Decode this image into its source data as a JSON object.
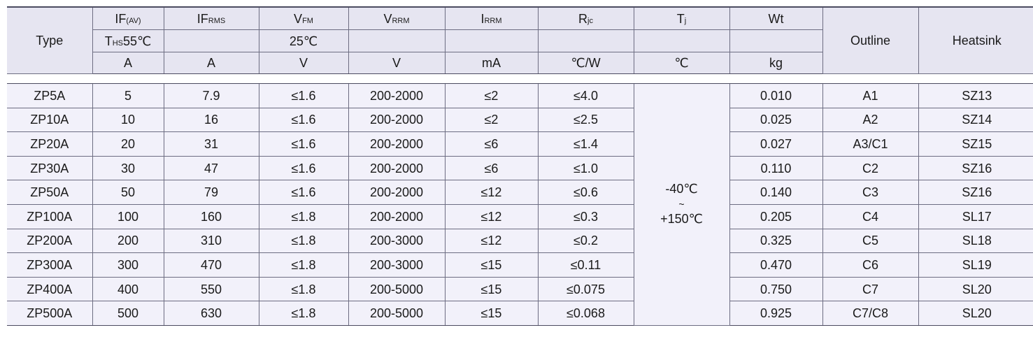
{
  "header": {
    "type": "Type",
    "if_av": {
      "main": "IF",
      "sub": "(AV)"
    },
    "if_rms": {
      "main": "IF",
      "sub": "RMS"
    },
    "vfm": {
      "main": "V",
      "sub": "FM"
    },
    "vrrm": {
      "main": "V",
      "sub": "RRM"
    },
    "irrm": {
      "main": "I",
      "sub": "RRM"
    },
    "rjc": {
      "main": "R",
      "sub": "jc"
    },
    "tj": {
      "main": "T",
      "sub": "j"
    },
    "wt": "Wt",
    "outline": "Outline",
    "heatsink": "Heatsink",
    "cond_ths": {
      "main": "T",
      "sub": "HS",
      "rest": "55℃"
    },
    "cond_25": "25℃",
    "units": {
      "if_av": "A",
      "if_rms": "A",
      "vfm": "V",
      "vrrm": "V",
      "irrm": "mA",
      "rjc": "℃/W",
      "tj": "℃",
      "wt": "kg"
    }
  },
  "tj_range": {
    "low": "-40℃",
    "sep": "~",
    "high": "+150℃"
  },
  "rows": [
    {
      "type": "ZP5A",
      "if_av": "5",
      "if_rms": "7.9",
      "vfm": "≤1.6",
      "vrrm": "200-2000",
      "irrm": "≤2",
      "rjc": "≤4.0",
      "wt": "0.010",
      "outline": "A1",
      "heatsink": "SZ13"
    },
    {
      "type": "ZP10A",
      "if_av": "10",
      "if_rms": "16",
      "vfm": "≤1.6",
      "vrrm": "200-2000",
      "irrm": "≤2",
      "rjc": "≤2.5",
      "wt": "0.025",
      "outline": "A2",
      "heatsink": "SZ14"
    },
    {
      "type": "ZP20A",
      "if_av": "20",
      "if_rms": "31",
      "vfm": "≤1.6",
      "vrrm": "200-2000",
      "irrm": "≤6",
      "rjc": "≤1.4",
      "wt": "0.027",
      "outline": "A3/C1",
      "heatsink": "SZ15"
    },
    {
      "type": "ZP30A",
      "if_av": "30",
      "if_rms": "47",
      "vfm": "≤1.6",
      "vrrm": "200-2000",
      "irrm": "≤6",
      "rjc": "≤1.0",
      "wt": "0.110",
      "outline": "C2",
      "heatsink": "SZ16"
    },
    {
      "type": "ZP50A",
      "if_av": "50",
      "if_rms": "79",
      "vfm": "≤1.6",
      "vrrm": "200-2000",
      "irrm": "≤12",
      "rjc": "≤0.6",
      "wt": "0.140",
      "outline": "C3",
      "heatsink": "SZ16"
    },
    {
      "type": "ZP100A",
      "if_av": "100",
      "if_rms": "160",
      "vfm": "≤1.8",
      "vrrm": "200-2000",
      "irrm": "≤12",
      "rjc": "≤0.3",
      "wt": "0.205",
      "outline": "C4",
      "heatsink": "SL17"
    },
    {
      "type": "ZP200A",
      "if_av": "200",
      "if_rms": "310",
      "vfm": "≤1.8",
      "vrrm": "200-3000",
      "irrm": "≤12",
      "rjc": "≤0.2",
      "wt": "0.325",
      "outline": "C5",
      "heatsink": "SL18"
    },
    {
      "type": "ZP300A",
      "if_av": "300",
      "if_rms": "470",
      "vfm": "≤1.8",
      "vrrm": "200-3000",
      "irrm": "≤15",
      "rjc": "≤0.11",
      "wt": "0.470",
      "outline": "C6",
      "heatsink": "SL19"
    },
    {
      "type": "ZP400A",
      "if_av": "400",
      "if_rms": "550",
      "vfm": "≤1.8",
      "vrrm": "200-5000",
      "irrm": "≤15",
      "rjc": "≤0.075",
      "wt": "0.750",
      "outline": "C7",
      "heatsink": "SL20"
    },
    {
      "type": "ZP500A",
      "if_av": "500",
      "if_rms": "630",
      "vfm": "≤1.8",
      "vrrm": "200-5000",
      "irrm": "≤15",
      "rjc": "≤0.068",
      "wt": "0.925",
      "outline": "C7/C8",
      "heatsink": "SL20"
    }
  ]
}
